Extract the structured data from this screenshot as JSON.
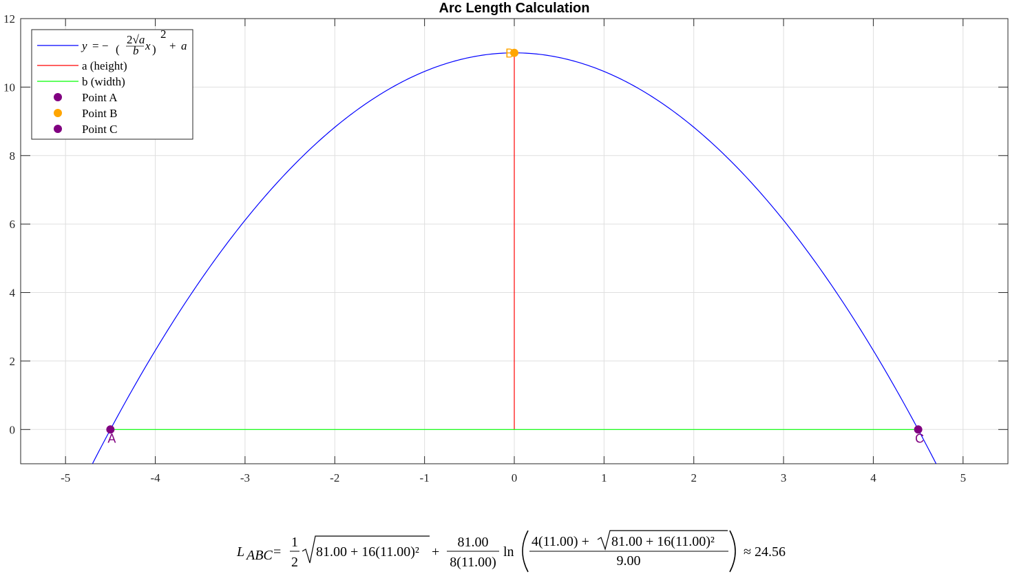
{
  "chart_data": {
    "type": "line",
    "title": "Arc Length Calculation",
    "xlabel": "",
    "ylabel": "",
    "xlim": [
      -5.5,
      5.5
    ],
    "ylim": [
      -1,
      12
    ],
    "xticks": [
      -5,
      -4,
      -3,
      -2,
      -1,
      0,
      1,
      2,
      3,
      4,
      5
    ],
    "yticks": [
      0,
      2,
      4,
      6,
      8,
      10,
      12
    ],
    "xtick_labels": [
      "-5",
      "-4",
      "-3",
      "-2",
      "-1",
      "0",
      "1",
      "2",
      "3",
      "4",
      "5"
    ],
    "ytick_labels": [
      "0",
      "2",
      "4",
      "6",
      "8",
      "10",
      "12"
    ],
    "grid": true,
    "legend_position": "top-left",
    "params": {
      "a": 11,
      "b": 9
    },
    "series": [
      {
        "name": "y = −((2√a / b) x)² + a",
        "kind": "curve",
        "color": "#0000ff",
        "x_range": [
          -4.7,
          4.7
        ]
      },
      {
        "name": "a (height)",
        "kind": "segment",
        "color": "#ff0000",
        "x": [
          0,
          0
        ],
        "y": [
          0,
          11
        ]
      },
      {
        "name": "b (width)",
        "kind": "segment",
        "color": "#00ff00",
        "x": [
          -4.5,
          4.5
        ],
        "y": [
          0,
          0
        ]
      },
      {
        "name": "Point A",
        "kind": "point",
        "color": "#800080",
        "x": -4.5,
        "y": 0,
        "label": "A"
      },
      {
        "name": "Point B",
        "kind": "point",
        "color": "#ffa500",
        "x": 0,
        "y": 11,
        "label": "B"
      },
      {
        "name": "Point C",
        "kind": "point",
        "color": "#800080",
        "x": 4.5,
        "y": 0,
        "label": "C"
      }
    ]
  },
  "formula": {
    "lhs": "L",
    "lhs_sub": "ABC",
    "eq": "=",
    "half_num": "1",
    "half_den": "2",
    "sqrt1_body": "81.00 + 16(11.00)²",
    "plus": "+",
    "frac_num": "81.00",
    "frac_den": "8(11.00)",
    "ln": "ln",
    "inner_num_prefix": "4(11.00) +",
    "inner_sqrt_body": "81.00 + 16(11.00)²",
    "inner_den": "9.00",
    "approx": "≈ 24.56"
  }
}
